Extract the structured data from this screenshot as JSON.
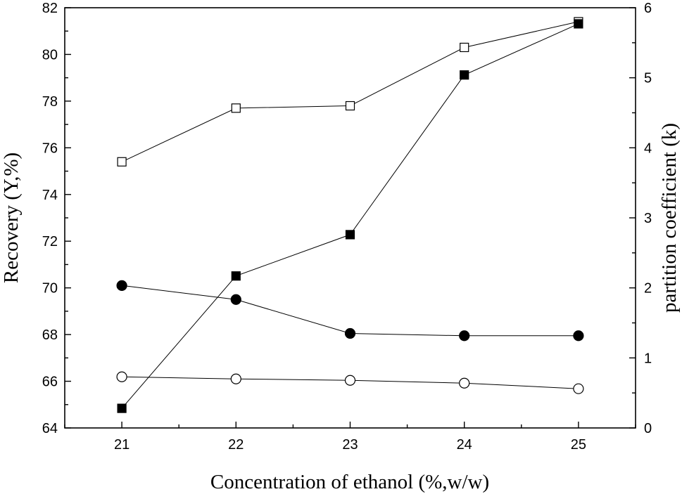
{
  "chart_data": {
    "type": "line",
    "title": "",
    "xlabel": "Concentration of ethanol (%,w/w)",
    "ylabel": "Recovery (Y,%)",
    "y2label": "partition coefficient (k)",
    "xlim": [
      20.5,
      25.5
    ],
    "ylim": [
      64,
      82
    ],
    "y2lim": [
      0,
      6
    ],
    "x_ticks": [
      21,
      22,
      23,
      24,
      25
    ],
    "y_ticks": [
      64,
      66,
      68,
      70,
      72,
      74,
      76,
      78,
      80,
      82
    ],
    "y2_ticks": [
      0,
      1,
      2,
      3,
      4,
      5,
      6
    ],
    "grid": false,
    "legend": "none",
    "x": [
      21,
      22,
      23,
      24,
      25
    ],
    "series": [
      {
        "axis": "left",
        "marker": "open-square",
        "values": [
          75.4,
          77.7,
          77.8,
          80.3,
          81.4
        ]
      },
      {
        "axis": "left",
        "marker": "filled-circle",
        "values": [
          70.1,
          69.5,
          68.05,
          67.95,
          67.95
        ]
      },
      {
        "axis": "right",
        "marker": "filled-square",
        "values": [
          0.28,
          2.17,
          2.76,
          5.04,
          5.77
        ]
      },
      {
        "axis": "right",
        "marker": "open-circle",
        "values": [
          0.73,
          0.7,
          0.68,
          0.64,
          0.56
        ]
      }
    ]
  }
}
